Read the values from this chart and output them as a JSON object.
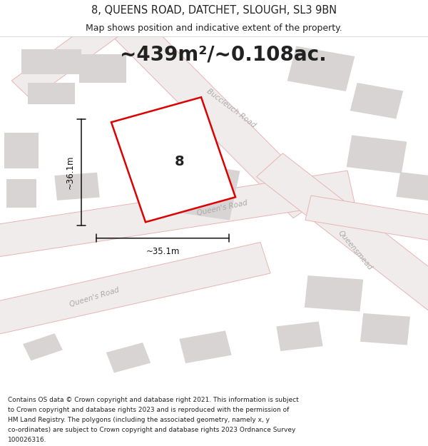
{
  "title_line1": "8, QUEENS ROAD, DATCHET, SLOUGH, SL3 9BN",
  "title_line2": "Map shows position and indicative extent of the property.",
  "area_text": "~439m²/~0.108ac.",
  "label_number": "8",
  "dim_width": "~35.1m",
  "dim_height": "~36.1m",
  "footer_lines": [
    "Contains OS data © Crown copyright and database right 2021. This information is subject",
    "to Crown copyright and database rights 2023 and is reproduced with the permission of",
    "HM Land Registry. The polygons (including the associated geometry, namely x, y",
    "co-ordinates) are subject to Crown copyright and database rights 2023 Ordnance Survey",
    "100026316."
  ],
  "bg_color": "#f5f3f3",
  "road_line_color": "#e8b4b4",
  "road_fill_color": "#f0ecec",
  "building_fill": "#d8d4d4",
  "building_edge": "none",
  "property_fill": "#ffffff",
  "property_edge": "#dd0000",
  "property_edge_width": 1.8,
  "text_dark": "#222222",
  "text_gray": "#aaaaaa",
  "dim_color": "#111111",
  "title_fontsize": 10.5,
  "subtitle_fontsize": 9.0,
  "area_fontsize": 20,
  "label_fontsize": 14,
  "dim_fontsize": 8.5,
  "road_fontsize": 7.5,
  "footer_fontsize": 6.5,
  "fig_width": 6.0,
  "fig_height": 6.25
}
